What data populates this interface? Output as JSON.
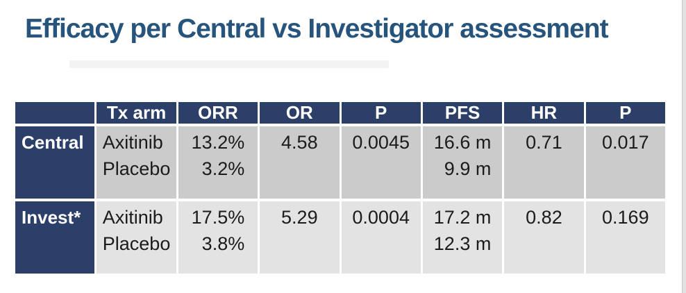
{
  "title": "Efficacy per Central vs Investigator assessment",
  "colors": {
    "title": "#26547C",
    "table_navy": "#2B3F69",
    "row1_gray": "#CBCBCB",
    "row2_gray": "#E3E3E3",
    "header_text": "#FFFFFF",
    "body_text": "#1B1B1B"
  },
  "table": {
    "headers": [
      "",
      "Tx arm",
      "ORR",
      "OR",
      "P",
      "PFS",
      "HR",
      "P"
    ],
    "rows": [
      {
        "label": "Central",
        "tx_arm": [
          "Axitinib",
          "Placebo"
        ],
        "orr": [
          "13.2%",
          "3.2%"
        ],
        "or": "4.58",
        "p_or": "0.0045",
        "pfs": [
          "16.6 m",
          "9.9 m"
        ],
        "hr": "0.71",
        "p_hr": "0.017"
      },
      {
        "label": "Invest*",
        "tx_arm": [
          "Axitinib",
          "Placebo"
        ],
        "orr": [
          "17.5%",
          "3.8%"
        ],
        "or": "5.29",
        "p_or": "0.0004",
        "pfs": [
          "17.2 m",
          "12.3 m"
        ],
        "hr": "0.82",
        "p_hr": "0.169"
      }
    ]
  }
}
